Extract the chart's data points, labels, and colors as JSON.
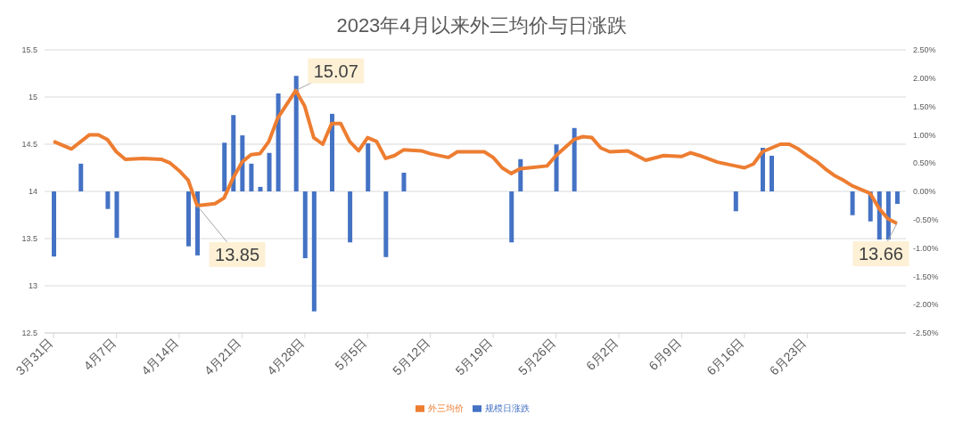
{
  "chart_data": {
    "type": "line",
    "title": "2023年4月以来外三均价与日涨跌",
    "series": [
      {
        "name": "规模日涨跌",
        "type": "bar",
        "axis": "y2",
        "color": "#4472c4",
        "x": [
          "2023-03-31",
          "2023-04-03",
          "2023-04-06",
          "2023-04-07",
          "2023-04-15",
          "2023-04-16",
          "2023-04-19",
          "2023-04-20",
          "2023-04-21",
          "2023-04-22",
          "2023-04-23",
          "2023-04-24",
          "2023-04-25",
          "2023-04-27",
          "2023-04-28",
          "2023-04-29",
          "2023-05-01",
          "2023-05-03",
          "2023-05-05",
          "2023-05-07",
          "2023-05-09",
          "2023-05-21",
          "2023-05-22",
          "2023-05-26",
          "2023-05-28",
          "2023-06-15",
          "2023-06-18",
          "2023-06-19",
          "2023-06-28",
          "2023-06-30",
          "2023-07-01",
          "2023-07-02",
          "2023-07-03"
        ],
        "values": [
          -1.15,
          0.49,
          -0.31,
          -0.82,
          -0.97,
          -1.13,
          0.86,
          1.35,
          0.99,
          0.49,
          0.08,
          0.68,
          1.73,
          2.04,
          -1.18,
          -2.12,
          1.37,
          -0.9,
          0.85,
          -1.16,
          0.33,
          -0.9,
          0.57,
          0.83,
          1.12,
          -0.35,
          0.77,
          0.63,
          -0.42,
          -0.53,
          -0.85,
          -0.85,
          -0.22
        ]
      },
      {
        "name": "外三均价",
        "color": "#ed7d31",
        "x": [
          "2023-03-31",
          "2023-04-02",
          "2023-04-04",
          "2023-04-05",
          "2023-04-06",
          "2023-04-07",
          "2023-04-08",
          "2023-04-10",
          "2023-04-12",
          "2023-04-13",
          "2023-04-14",
          "2023-04-15",
          "2023-04-16",
          "2023-04-18",
          "2023-04-19",
          "2023-04-20",
          "2023-04-21",
          "2023-04-22",
          "2023-04-23",
          "2023-04-24",
          "2023-04-25",
          "2023-04-27",
          "2023-04-28",
          "2023-04-29",
          "2023-04-30",
          "2023-05-01",
          "2023-05-02",
          "2023-05-03",
          "2023-05-04",
          "2023-05-05",
          "2023-05-06",
          "2023-05-07",
          "2023-05-08",
          "2023-05-09",
          "2023-05-11",
          "2023-05-12",
          "2023-05-14",
          "2023-05-15",
          "2023-05-18",
          "2023-05-19",
          "2023-05-20",
          "2023-05-21",
          "2023-05-22",
          "2023-05-23",
          "2023-05-25",
          "2023-05-26",
          "2023-05-28",
          "2023-05-29",
          "2023-05-30",
          "2023-05-31",
          "2023-06-01",
          "2023-06-03",
          "2023-06-05",
          "2023-06-07",
          "2023-06-09",
          "2023-06-10",
          "2023-06-11",
          "2023-06-13",
          "2023-06-15",
          "2023-06-16",
          "2023-06-17",
          "2023-06-18",
          "2023-06-20",
          "2023-06-21",
          "2023-06-22",
          "2023-06-23",
          "2023-06-24",
          "2023-06-25",
          "2023-06-26",
          "2023-06-27",
          "2023-06-28",
          "2023-06-30",
          "2023-07-01",
          "2023-07-02",
          "2023-07-03"
        ],
        "values": [
          14.53,
          14.45,
          14.6,
          14.6,
          14.55,
          14.42,
          14.34,
          14.35,
          14.34,
          14.3,
          14.22,
          14.12,
          13.85,
          13.87,
          13.93,
          14.14,
          14.31,
          14.39,
          14.4,
          14.53,
          14.78,
          15.07,
          14.9,
          14.57,
          14.5,
          14.72,
          14.72,
          14.53,
          14.43,
          14.57,
          14.53,
          14.35,
          14.38,
          14.44,
          14.43,
          14.4,
          14.36,
          14.42,
          14.42,
          14.36,
          14.25,
          14.19,
          14.24,
          14.25,
          14.27,
          14.38,
          14.55,
          14.58,
          14.57,
          14.46,
          14.42,
          14.43,
          14.33,
          14.38,
          14.37,
          14.41,
          14.38,
          14.31,
          14.27,
          14.25,
          14.29,
          14.42,
          14.5,
          14.5,
          14.45,
          14.38,
          14.32,
          14.24,
          14.17,
          14.12,
          14.06,
          13.98,
          13.82,
          13.71,
          13.66
        ]
      }
    ],
    "xlim": [
      "2023-03-30",
      "2023-07-04"
    ],
    "xticks": [
      {
        "value": "2023-03-31",
        "label": "3月31日"
      },
      {
        "value": "2023-04-07",
        "label": "4月7日"
      },
      {
        "value": "2023-04-14",
        "label": "4月14日"
      },
      {
        "value": "2023-04-21",
        "label": "4月21日"
      },
      {
        "value": "2023-04-28",
        "label": "4月28日"
      },
      {
        "value": "2023-05-05",
        "label": "5月5日"
      },
      {
        "value": "2023-05-12",
        "label": "5月12日"
      },
      {
        "value": "2023-05-19",
        "label": "5月19日"
      },
      {
        "value": "2023-05-26",
        "label": "5月26日"
      },
      {
        "value": "2023-06-02",
        "label": "6月2日"
      },
      {
        "value": "2023-06-09",
        "label": "6月9日"
      },
      {
        "value": "2023-06-16",
        "label": "6月16日"
      },
      {
        "value": "2023-06-23",
        "label": "6月23日"
      }
    ],
    "ylim": [
      12.5,
      15.5
    ],
    "yticks": [
      12.5,
      13,
      13.5,
      14,
      14.5,
      15,
      15.5
    ],
    "y2lim": [
      -2.5,
      2.5
    ],
    "y2ticks": [
      {
        "value": -2.5,
        "label": "-2.50%"
      },
      {
        "value": -2,
        "label": "-2.00%"
      },
      {
        "value": -1.5,
        "label": "-1.50%"
      },
      {
        "value": -1,
        "label": "-1.00%"
      },
      {
        "value": -0.5,
        "label": "-0.50%"
      },
      {
        "value": 0,
        "label": "0.00%"
      },
      {
        "value": 0.5,
        "label": "0.50%"
      },
      {
        "value": 1,
        "label": "1.00%"
      },
      {
        "value": 1.5,
        "label": "1.50%"
      },
      {
        "value": 2,
        "label": "2.00%"
      },
      {
        "value": 2.5,
        "label": "2.50%"
      }
    ],
    "annotations": [
      {
        "text": "15.07",
        "x": "2023-04-27",
        "y": 15.07
      },
      {
        "text": "13.85",
        "x": "2023-04-16",
        "y": 13.85
      },
      {
        "text": "13.66",
        "x": "2023-07-03",
        "y": 13.66
      }
    ],
    "grid": "y",
    "legend": "bottom",
    "marker": "none",
    "line_style": "solid"
  }
}
